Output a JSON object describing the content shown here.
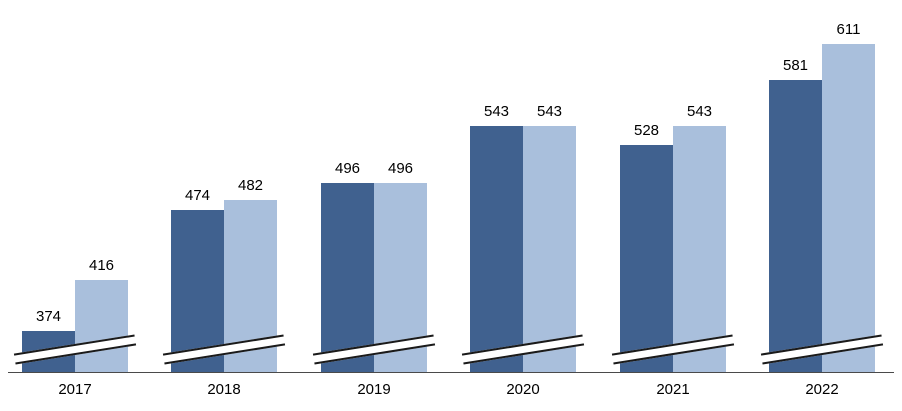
{
  "chart_data": {
    "type": "bar",
    "title": "",
    "xlabel": "",
    "ylabel": "",
    "categories": [
      "2017",
      "2018",
      "2019",
      "2020",
      "2021",
      "2022"
    ],
    "series": [
      {
        "name": "series-1",
        "color": "#40618f",
        "values": [
          374,
          474,
          496,
          543,
          528,
          581
        ]
      },
      {
        "name": "series-2",
        "color": "#a9bfdc",
        "values": [
          416,
          482,
          496,
          543,
          543,
          611
        ]
      }
    ],
    "value_labels": true,
    "legend_position": "none",
    "grid": false,
    "axis_break": true,
    "axis_break_note": "diagonal break marks across bar bases indicate truncated y-axis"
  }
}
